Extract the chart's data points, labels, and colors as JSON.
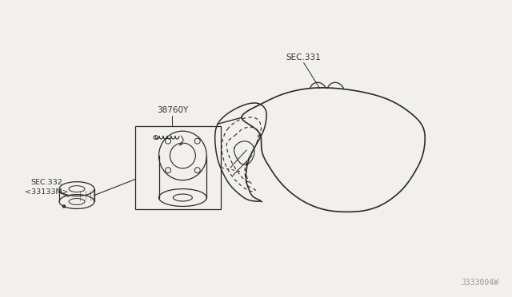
{
  "background_color": "#f2f0ed",
  "line_color": "#2a2a2a",
  "text_color": "#333333",
  "watermark": "J333004W",
  "label_sec331": "SEC.331",
  "label_38760y": "38760Y",
  "label_sec332": "SEC.332\n<33133M>",
  "fig_width": 6.4,
  "fig_height": 3.72,
  "dpi": 100
}
